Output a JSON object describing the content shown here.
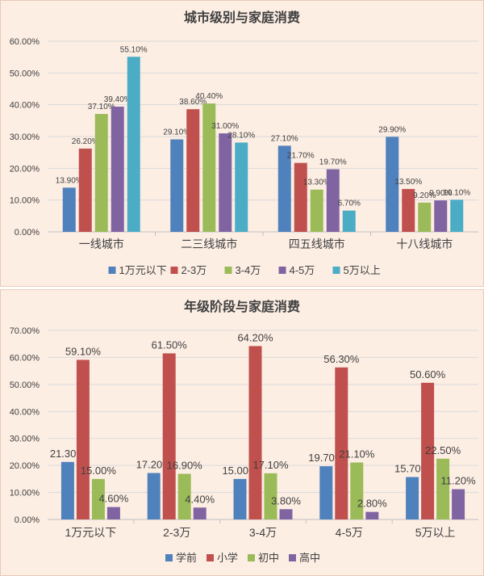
{
  "chart_data": [
    {
      "type": "bar",
      "title": "城市级别与家庭消费",
      "categories": [
        "一线城市",
        "二三线城市",
        "四五线城市",
        "十八线城市"
      ],
      "y_ticks": [
        "0.00%",
        "10.00%",
        "20.00%",
        "30.00%",
        "40.00%",
        "50.00%",
        "60.00%"
      ],
      "ylim": [
        0,
        60
      ],
      "legend_position": "bottom",
      "grid": true,
      "series": [
        {
          "name": "1万元以下",
          "color": "#4f81bd",
          "values": [
            13.9,
            29.1,
            27.1,
            29.9
          ],
          "labels": [
            "13.90%",
            "29.10%",
            "27.10%",
            "29.90%"
          ]
        },
        {
          "name": "2-3万",
          "color": "#c0504d",
          "values": [
            26.2,
            38.6,
            21.7,
            13.5
          ],
          "labels": [
            "26.20%",
            "38.60%",
            "21.70%",
            "13.50%"
          ]
        },
        {
          "name": "3-4万",
          "color": "#9bbb59",
          "values": [
            37.1,
            40.4,
            13.3,
            9.2
          ],
          "labels": [
            "37.10%",
            "40.40%",
            "13.30%",
            "9.20%"
          ]
        },
        {
          "name": "4-5万",
          "color": "#8064a2",
          "values": [
            39.4,
            31.0,
            19.7,
            9.9
          ],
          "labels": [
            "39.40%",
            "31.00%",
            "19.70%",
            "9.90%"
          ]
        },
        {
          "name": "5万以上",
          "color": "#4bacc6",
          "values": [
            55.1,
            28.1,
            6.7,
            10.1
          ],
          "labels": [
            "55.10%",
            "28.10%",
            "6.70%",
            "10.10%"
          ]
        }
      ]
    },
    {
      "type": "bar",
      "title": "年级阶段与家庭消费",
      "categories": [
        "1万元以下",
        "2-3万",
        "3-4万",
        "4-5万",
        "5万以上"
      ],
      "y_ticks": [
        "0.00%",
        "10.00%",
        "20.00%",
        "30.00%",
        "40.00%",
        "50.00%",
        "60.00%",
        "70.00%"
      ],
      "ylim": [
        0,
        70
      ],
      "legend_position": "bottom",
      "grid": true,
      "series": [
        {
          "name": "学前",
          "color": "#4f81bd",
          "values": [
            21.3,
            17.2,
            15.0,
            19.7,
            15.7
          ],
          "labels": [
            "21.30%",
            "17.20%",
            "15.00%",
            "19.70%",
            "15.70%"
          ]
        },
        {
          "name": "小学",
          "color": "#c0504d",
          "values": [
            59.1,
            61.5,
            64.2,
            56.3,
            50.6
          ],
          "labels": [
            "59.10%",
            "61.50%",
            "64.20%",
            "56.30%",
            "50.60%"
          ]
        },
        {
          "name": "初中",
          "color": "#9bbb59",
          "values": [
            15.0,
            16.9,
            17.1,
            21.1,
            22.5
          ],
          "labels": [
            "15.00%",
            "16.90%",
            "17.10%",
            "21.10%",
            "22.50%"
          ]
        },
        {
          "name": "高中",
          "color": "#8064a2",
          "values": [
            4.6,
            4.4,
            3.8,
            2.8,
            11.2
          ],
          "labels": [
            "4.60%",
            "4.40%",
            "3.80%",
            "2.80%",
            "11.20%"
          ]
        }
      ]
    }
  ]
}
